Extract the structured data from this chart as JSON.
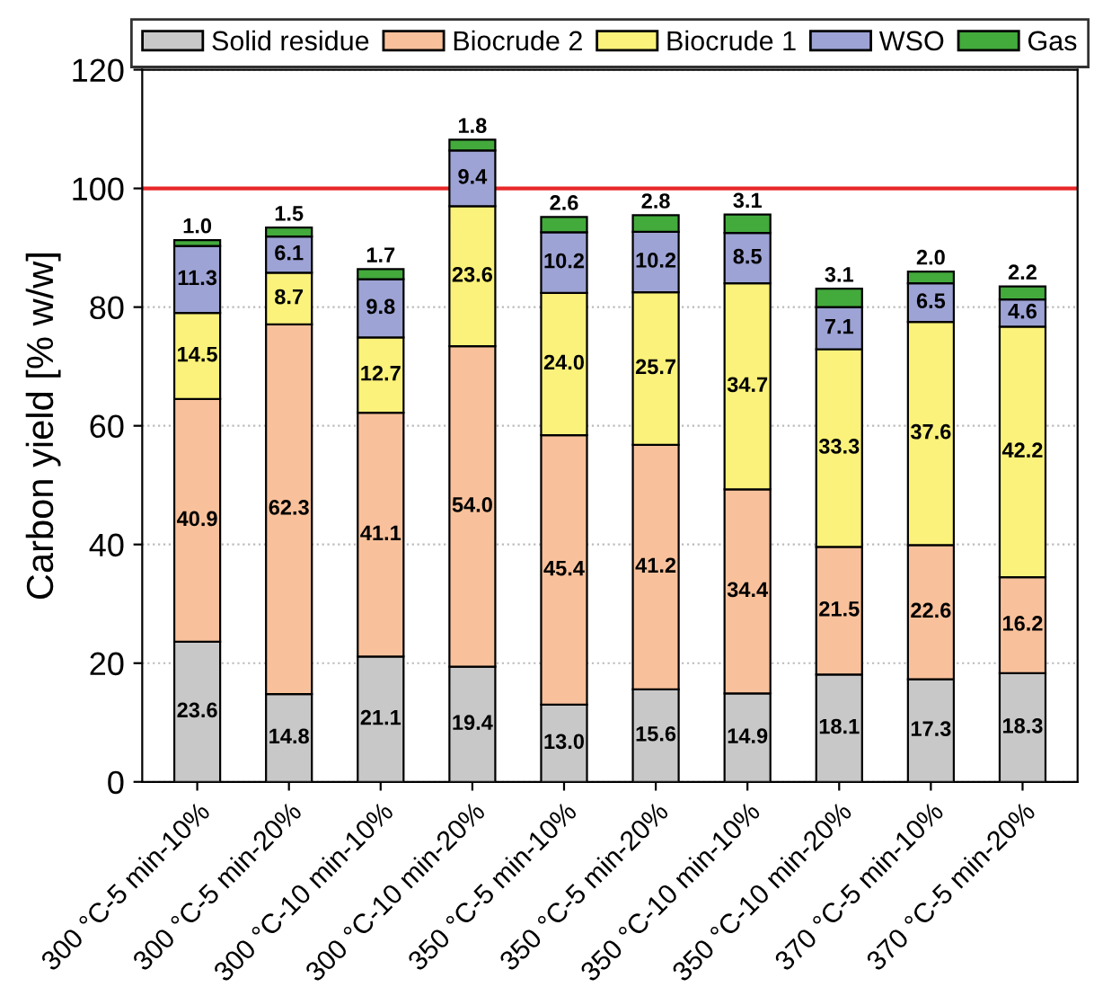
{
  "chart_data": {
    "type": "bar",
    "stacked": true,
    "ylabel": "Carbon yield [% w/w]",
    "categories": [
      "300 °C-5 min-10%",
      "300 °C-5 min-20%",
      "300 °C-10 min-10%",
      "300 °C-10 min-20%",
      "350 °C-5 min-10%",
      "350 °C-5 min-20%",
      "350 °C-10 min-10%",
      "350 °C-10 min-20%",
      "370 °C-5 min-10%",
      "370 °C-5 min-20%"
    ],
    "series": [
      {
        "name": "Solid residue",
        "color": "#c8c8c8",
        "values": [
          23.6,
          14.8,
          21.1,
          19.4,
          13.0,
          15.6,
          14.9,
          18.1,
          17.3,
          18.3
        ],
        "value_labels": [
          "23.6",
          "14.8",
          "21.1",
          "19.4",
          "13.0",
          "15.6",
          "14.9",
          "18.1",
          "17.3",
          "18.3"
        ]
      },
      {
        "name": "Biocrude 2",
        "color": "#f9c19b",
        "values": [
          40.9,
          62.3,
          41.1,
          54.0,
          45.4,
          41.2,
          34.4,
          21.5,
          22.6,
          16.2
        ],
        "value_labels": [
          "40.9",
          "62.3",
          "41.1",
          "54.0",
          "45.4",
          "41.2",
          "34.4",
          "21.5",
          "22.6",
          "16.2"
        ]
      },
      {
        "name": "Biocrude 1",
        "color": "#faf27a",
        "values": [
          14.5,
          8.7,
          12.7,
          23.6,
          24.0,
          25.7,
          34.7,
          33.3,
          37.6,
          42.2
        ],
        "value_labels": [
          "14.5",
          "8.7",
          "12.7",
          "23.6",
          "24.0",
          "25.7",
          "34.7",
          "33.3",
          "37.6",
          "42.2"
        ]
      },
      {
        "name": "WSO",
        "color": "#9da3d4",
        "values": [
          11.3,
          6.1,
          9.8,
          9.4,
          10.2,
          10.2,
          8.5,
          7.1,
          6.5,
          4.6
        ],
        "value_labels": [
          "11.3",
          "6.1",
          "9.8",
          "9.4",
          "10.2",
          "10.2",
          "8.5",
          "7.1",
          "6.5",
          "4.6"
        ]
      },
      {
        "name": "Gas",
        "color": "#43aa3c",
        "values": [
          1.0,
          1.5,
          1.7,
          1.8,
          2.6,
          2.8,
          3.1,
          3.1,
          2.0,
          2.2
        ],
        "value_labels": [
          "1.0",
          "1.5",
          "1.7",
          "1.8",
          "2.6",
          "2.8",
          "3.1",
          "3.1",
          "2.0",
          "2.2"
        ]
      }
    ],
    "ylim": [
      0,
      120
    ],
    "yticks": [
      0,
      20,
      40,
      60,
      80,
      100,
      120
    ],
    "ref_lines": [
      {
        "axis": "y",
        "value": 100,
        "color": "#e8282a",
        "line_style": "solid"
      }
    ],
    "grid": "y",
    "legend": "top"
  }
}
